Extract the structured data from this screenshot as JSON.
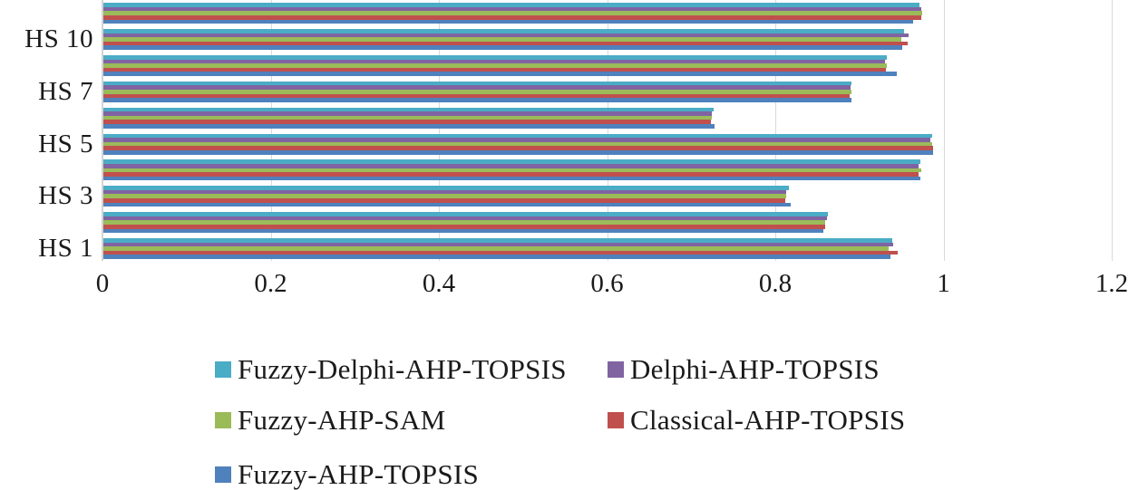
{
  "chart_data": {
    "type": "bar",
    "orientation": "horizontal",
    "title": "",
    "xlabel": "",
    "ylabel": "",
    "xlim": [
      0,
      1.2
    ],
    "grid": true,
    "x_ticks": [
      {
        "value": 0,
        "label": "0"
      },
      {
        "value": 0.2,
        "label": "0.2"
      },
      {
        "value": 0.4,
        "label": "0.4"
      },
      {
        "value": 0.6,
        "label": "0.6"
      },
      {
        "value": 0.8,
        "label": "0.8"
      },
      {
        "value": 1.0,
        "label": "1"
      },
      {
        "value": 1.2,
        "label": "1.2"
      }
    ],
    "row_labels_top_to_bottom": [
      "",
      "HS 10",
      "",
      "HS 7",
      "",
      "HS 5",
      "",
      "HS 3",
      "",
      "HS 1"
    ],
    "bar_order_in_group": "series listed top-to-bottom within each group",
    "series": [
      {
        "name": "Fuzzy-Delphi-AHP-TOPSIS",
        "color": "#4BACC6",
        "values_top_to_bottom": [
          0.97,
          0.952,
          0.932,
          0.89,
          0.726,
          0.985,
          0.971,
          0.815,
          0.861,
          0.938
        ]
      },
      {
        "name": "Delphi-AHP-TOPSIS",
        "color": "#8064A2",
        "values_top_to_bottom": [
          0.972,
          0.957,
          0.929,
          0.888,
          0.723,
          0.983,
          0.969,
          0.812,
          0.86,
          0.939
        ]
      },
      {
        "name": "Fuzzy-AHP-SAM",
        "color": "#9BBB59",
        "values_top_to_bottom": [
          0.974,
          0.949,
          0.932,
          0.889,
          0.723,
          0.985,
          0.972,
          0.812,
          0.858,
          0.934
        ]
      },
      {
        "name": "Classical-AHP-TOPSIS",
        "color": "#C0504D",
        "values_top_to_bottom": [
          0.972,
          0.956,
          0.93,
          0.887,
          0.722,
          0.986,
          0.969,
          0.811,
          0.858,
          0.944
        ]
      },
      {
        "name": "Fuzzy-AHP-TOPSIS",
        "color": "#4F81BD",
        "values_top_to_bottom": [
          0.963,
          0.95,
          0.943,
          0.89,
          0.727,
          0.986,
          0.971,
          0.817,
          0.856,
          0.936
        ]
      }
    ],
    "legend": {
      "position": "bottom-left",
      "columns": 2,
      "items": [
        {
          "label": "Fuzzy-Delphi-AHP-TOPSIS",
          "color": "#4BACC6"
        },
        {
          "label": "Delphi-AHP-TOPSIS",
          "color": "#8064A2"
        },
        {
          "label": "Fuzzy-AHP-SAM",
          "color": "#9BBB59"
        },
        {
          "label": "Classical-AHP-TOPSIS",
          "color": "#C0504D"
        },
        {
          "label": "Fuzzy-AHP-TOPSIS",
          "color": "#4F81BD"
        }
      ]
    },
    "colors": {
      "gridline": "#D9D9D9",
      "axis_line": "#D3D3D3",
      "text": "#1A1A1A",
      "background": "#FFFFFF"
    }
  }
}
